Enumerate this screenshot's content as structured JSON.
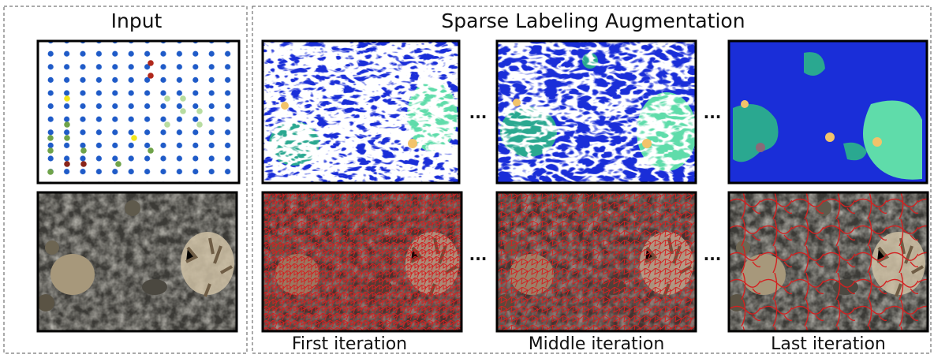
{
  "titles": {
    "input": "Input",
    "augmentation": "Sparse Labeling Augmentation"
  },
  "ellipsis": "...",
  "captions": [
    "First iteration",
    "Middle iteration",
    "Last iteration"
  ]
}
